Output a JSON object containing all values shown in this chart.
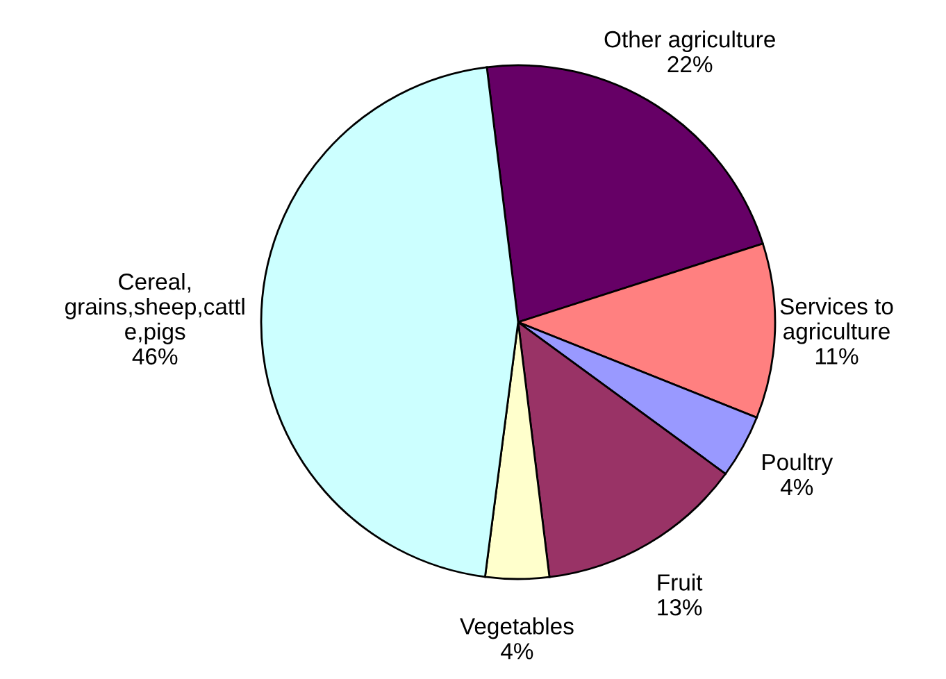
{
  "chart_data": {
    "type": "pie",
    "categories": [
      "Other agriculture",
      "Services to\nagriculture",
      "Poultry",
      "Fruit",
      "Vegetables",
      "Cereal,\ngrains,sheep,cattl\ne,pigs"
    ],
    "values": [
      22,
      11,
      4,
      13,
      4,
      46
    ],
    "value_labels": [
      "22%",
      "11%",
      "4%",
      "13%",
      "4%",
      "46%"
    ],
    "colors": [
      "#660066",
      "#ff8080",
      "#9999ff",
      "#993366",
      "#ffffcc",
      "#ccffff"
    ]
  }
}
